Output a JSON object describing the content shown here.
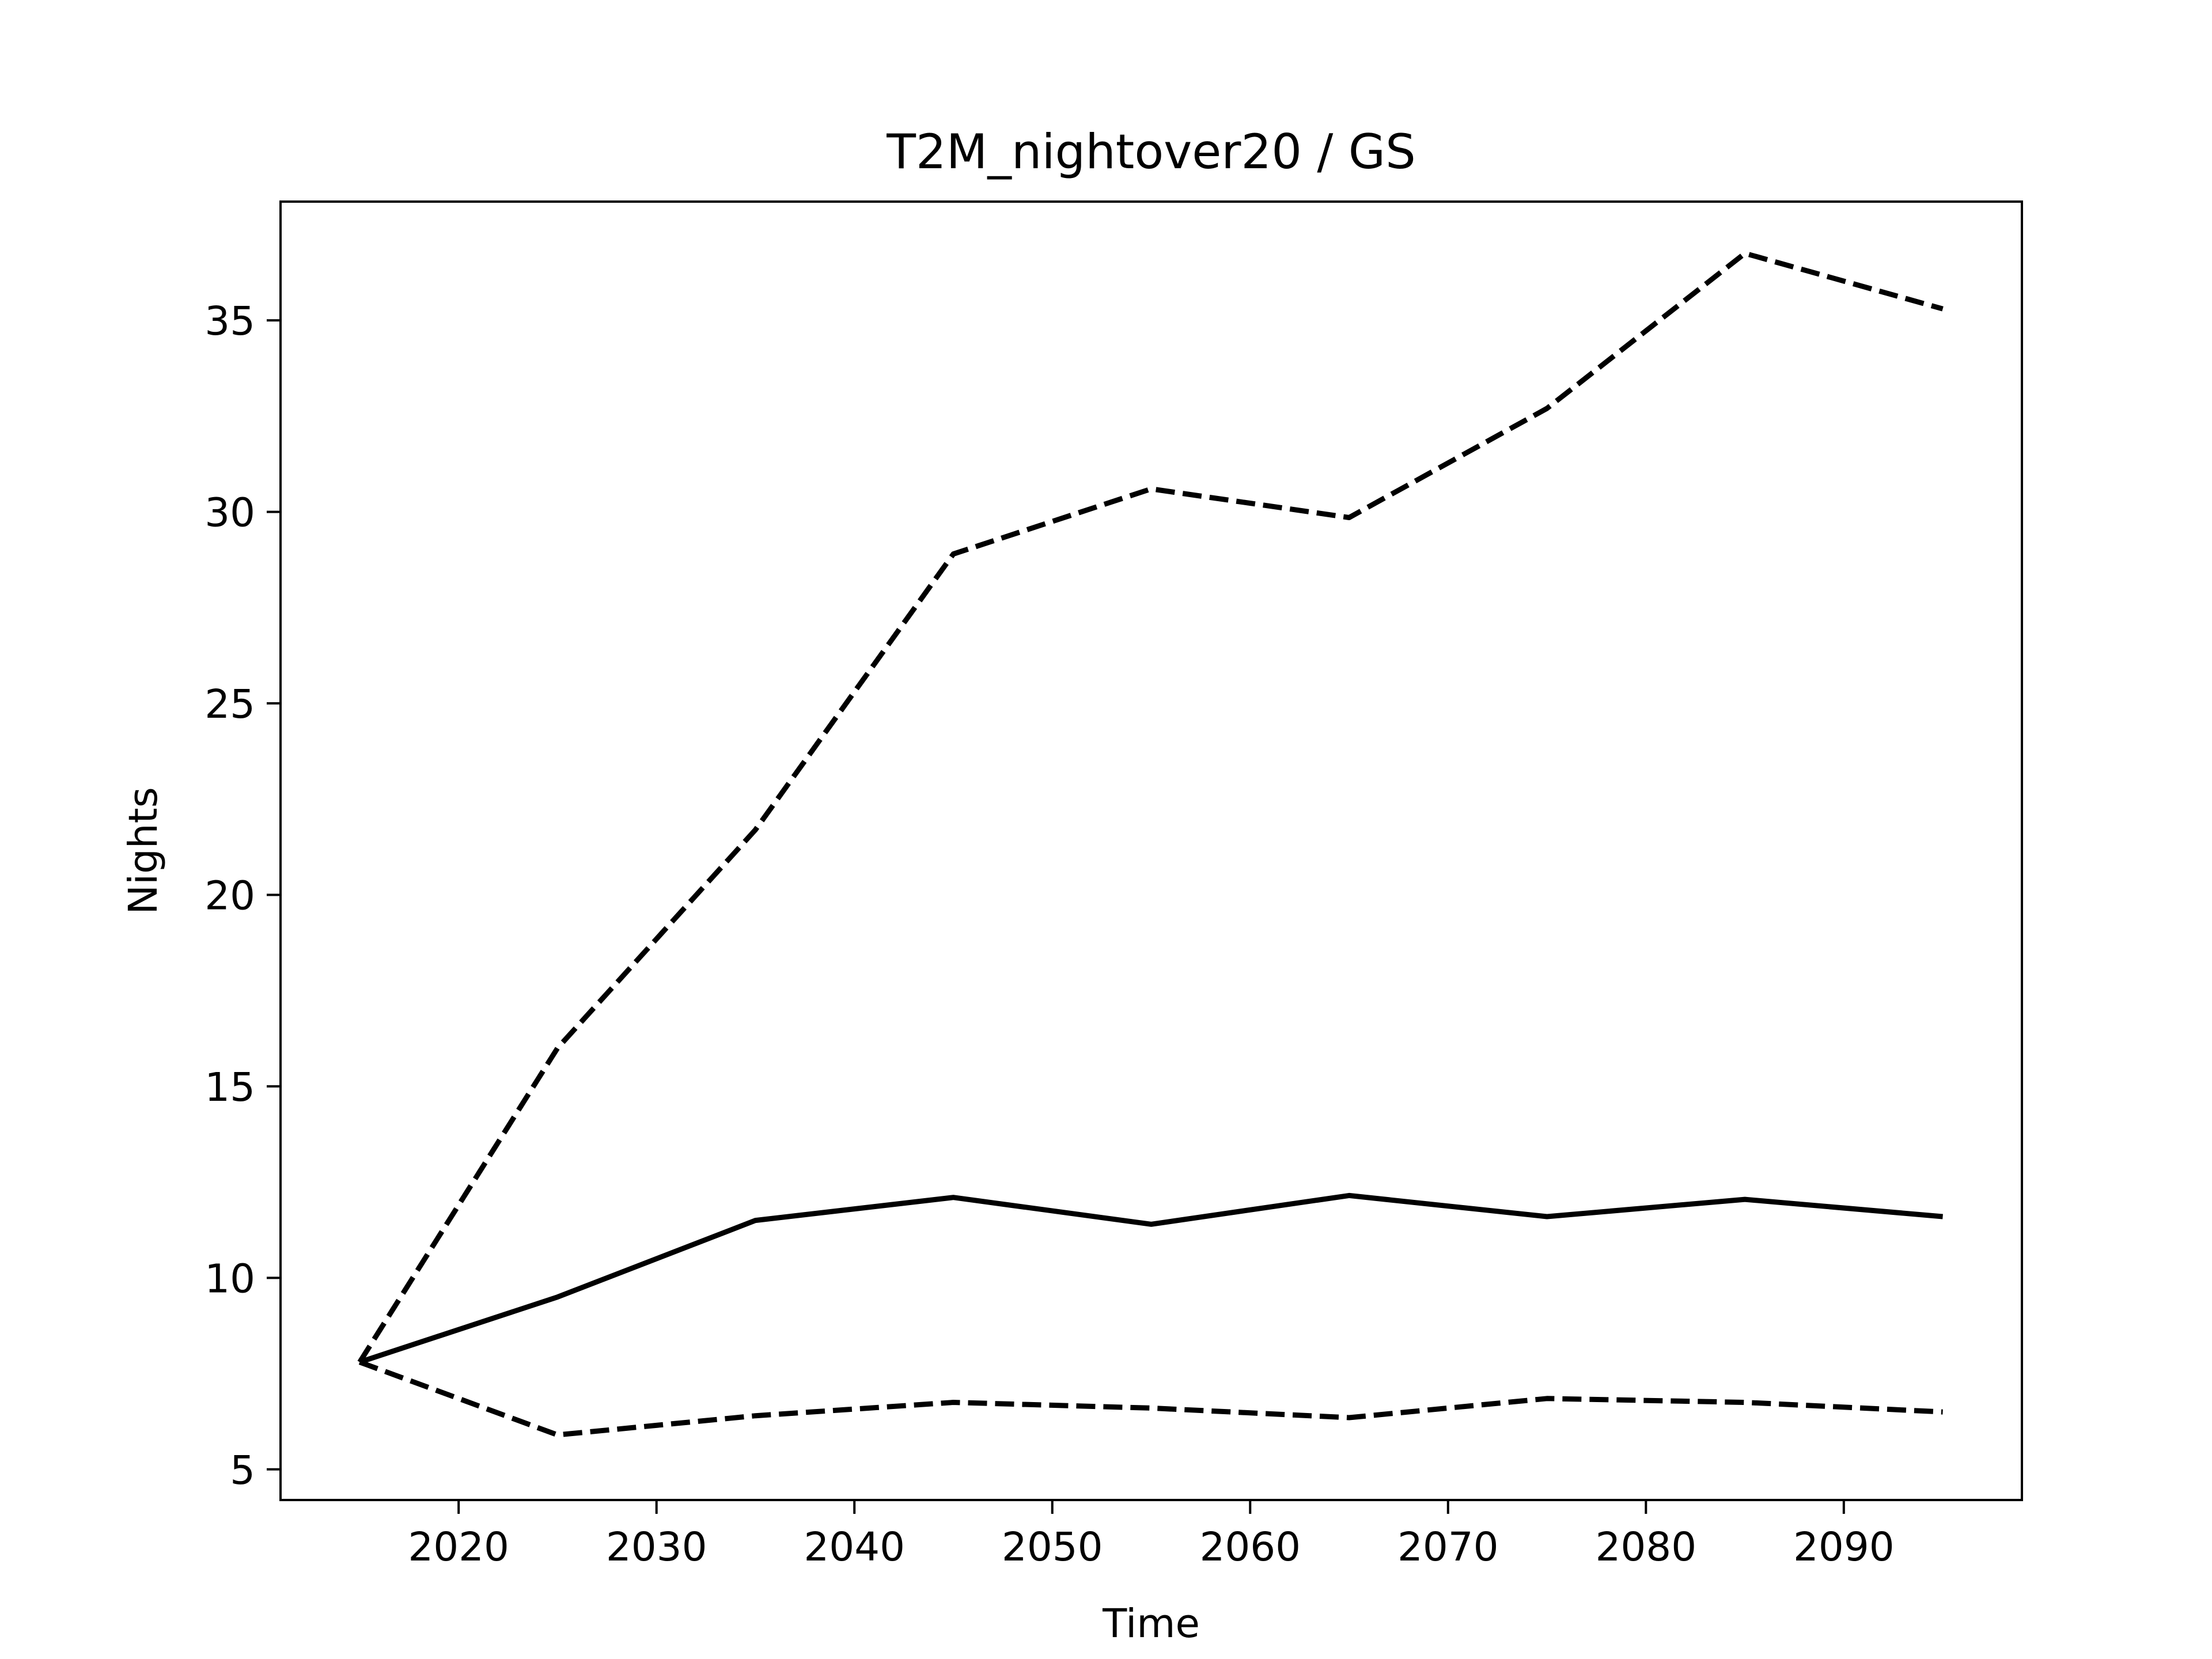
{
  "chart_data": {
    "type": "line",
    "title": "T2M_nightover20 / GS",
    "xlabel": "Time",
    "ylabel": "Nights",
    "xlim": [
      2011,
      2099
    ],
    "ylim": [
      4.2,
      38.1
    ],
    "xticks": [
      2020,
      2030,
      2040,
      2050,
      2060,
      2070,
      2080,
      2090
    ],
    "yticks": [
      5,
      10,
      15,
      20,
      25,
      30,
      35
    ],
    "grid": false,
    "legend": "none",
    "x": [
      2015,
      2025,
      2035,
      2045,
      2055,
      2065,
      2075,
      2085,
      2095
    ],
    "series": [
      {
        "style": "solid",
        "color": "#000000",
        "values": [
          7.8,
          9.5,
          11.5,
          12.1,
          11.4,
          12.15,
          11.6,
          12.05,
          11.6
        ]
      },
      {
        "style": "dashed",
        "color": "#000000",
        "values": [
          7.8,
          16.0,
          21.7,
          28.9,
          30.6,
          29.85,
          32.7,
          36.75,
          35.3
        ]
      },
      {
        "style": "dashed",
        "color": "#000000",
        "values": [
          7.8,
          5.9,
          6.4,
          6.75,
          6.6,
          6.35,
          6.85,
          6.75,
          6.5
        ]
      }
    ]
  }
}
